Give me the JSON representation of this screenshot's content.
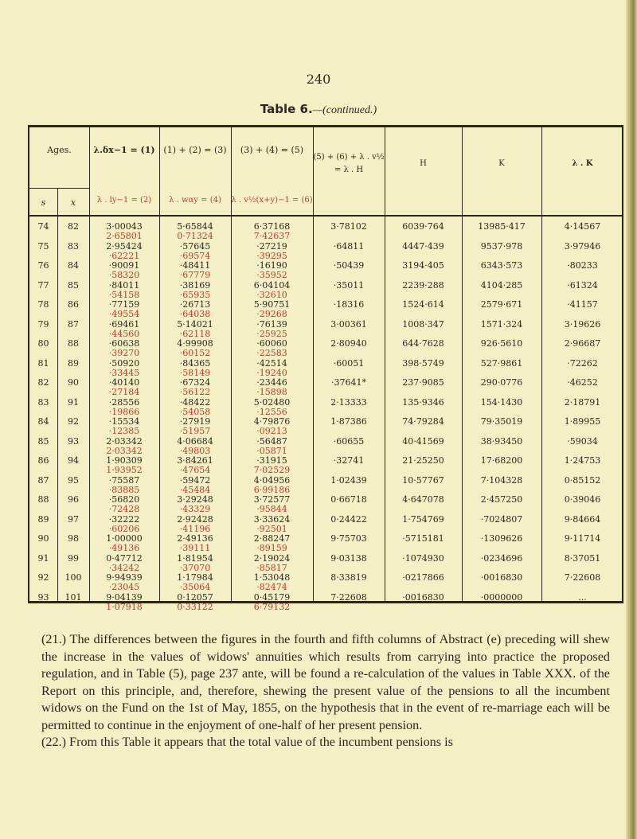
{
  "page_number": "240",
  "table": {
    "title_main": "Table 6.",
    "title_suffix": "—(continued.)",
    "headers": {
      "ages": "Ages.",
      "s": "s",
      "x": "x",
      "col1": "λ.δx−1 = (1)",
      "col2": "λ . ly−1 = (2)",
      "col3": "(1) + (2) = (3)",
      "col4": "λ . wαy  = (4)",
      "col5": "(3) + (4) = (5)",
      "col6": "λ . v½(x+y)−1 = (6)",
      "col56_line1": "(5) + (6) + λ . v½",
      "col56_line2": "= λ . H",
      "H": "H",
      "K": "K",
      "lK": "λ . K"
    },
    "rows": [
      {
        "s": "74",
        "x": "82",
        "c1": "3·00043",
        "c2": "2·65801",
        "c3": "5·65844",
        "c4": "0·71324",
        "c5": "6·37168",
        "c6": "7·42637",
        "c56": "3·78102",
        "H": "6039·764",
        "K": "13985·417",
        "lK": "4·14567"
      },
      {
        "s": "75",
        "x": "83",
        "c1": "2·95424",
        "c2": "·62221",
        "c3": "·57645",
        "c4": "·69574",
        "c5": "·27219",
        "c6": "·39295",
        "c56": "·64811",
        "H": "4447·439",
        "K": "9537·978",
        "lK": "3·97946"
      },
      {
        "s": "76",
        "x": "84",
        "c1": "·90091",
        "c2": "·58320",
        "c3": "·48411",
        "c4": "·67779",
        "c5": "·16190",
        "c6": "·35952",
        "c56": "·50439",
        "H": "3194·405",
        "K": "6343·573",
        "lK": "·80233"
      },
      {
        "s": "77",
        "x": "85",
        "c1": "·84011",
        "c2": "·54158",
        "c3": "·38169",
        "c4": "·65935",
        "c5": "6·04104",
        "c6": "·32610",
        "c56": "·35011",
        "H": "2239·288",
        "K": "4104·285",
        "lK": "·61324"
      },
      {
        "s": "78",
        "x": "86",
        "c1": "·77159",
        "c2": "·49554",
        "c3": "·26713",
        "c4": "·64038",
        "c5": "5·90751",
        "c6": "·29268",
        "c56": "·18316",
        "H": "1524·614",
        "K": "2579·671",
        "lK": "·41157"
      },
      {
        "s": "79",
        "x": "87",
        "c1": "·69461",
        "c2": "·44560",
        "c3": "5·14021",
        "c4": "·62118",
        "c5": "·76139",
        "c6": "·25925",
        "c56": "3·00361",
        "H": "1008·347",
        "K": "1571·324",
        "lK": "3·19626"
      },
      {
        "s": "80",
        "x": "88",
        "c1": "·60638",
        "c2": "·39270",
        "c3": "4·99908",
        "c4": "·60152",
        "c5": "·60060",
        "c6": "·22583",
        "c56": "2·80940",
        "H": "644·7628",
        "K": "926·5610",
        "lK": "2·96687"
      },
      {
        "s": "81",
        "x": "89",
        "c1": "·50920",
        "c2": "·33445",
        "c3": "·84365",
        "c4": "·58149",
        "c5": "·42514",
        "c6": "·19240",
        "c56": "·60051",
        "H": "398·5749",
        "K": "527·9861",
        "lK": "·72262"
      },
      {
        "s": "82",
        "x": "90",
        "c1": "·40140",
        "c2": "·27184",
        "c3": "·67324",
        "c4": "·56122",
        "c5": "·23446",
        "c6": "·15898",
        "c56": "·37641*",
        "H": "237·9085",
        "K": "290·0776",
        "lK": "·46252"
      },
      {
        "s": "83",
        "x": "91",
        "c1": "·28556",
        "c2": "·19866",
        "c3": "·48422",
        "c4": "·54058",
        "c5": "5·02480",
        "c6": "·12556",
        "c56": "2·13333",
        "H": "135·9346",
        "K": "154·1430",
        "lK": "2·18791"
      },
      {
        "s": "84",
        "x": "92",
        "c1": "·15534",
        "c2": "·12385",
        "c3": "·27919",
        "c4": "·51957",
        "c5": "4·79876",
        "c6": "·09213",
        "c56": "1·87386",
        "H": "74·79284",
        "K": "79·35019",
        "lK": "1·89955"
      },
      {
        "s": "85",
        "x": "93",
        "c1": "2·03342",
        "c2": "2·03342",
        "c3": "4·06684",
        "c4": "·49803",
        "c5": "·56487",
        "c6": "·05871",
        "c56": "·60655",
        "H": "40·41569",
        "K": "38·93450",
        "lK": "·59034"
      },
      {
        "s": "86",
        "x": "94",
        "c1": "1·90309",
        "c2": "1·93952",
        "c3": "3·84261",
        "c4": "·47654",
        "c5": "·31915",
        "c6": "7·02529",
        "c56": "·32741",
        "H": "21·25250",
        "K": "17·68200",
        "lK": "1·24753"
      },
      {
        "s": "87",
        "x": "95",
        "c1": "·75587",
        "c2": "·83885",
        "c3": "·59472",
        "c4": "·45484",
        "c5": "4·04956",
        "c6": "6·99186",
        "c56": "1·02439",
        "H": "10·57767",
        "K": "7·104328",
        "lK": "0·85152"
      },
      {
        "s": "88",
        "x": "96",
        "c1": "·56820",
        "c2": "·72428",
        "c3": "3·29248",
        "c4": "·43329",
        "c5": "3·72577",
        "c6": "·95844",
        "c56": "0·66718",
        "H": "4·647078",
        "K": "2·457250",
        "lK": "0·39046"
      },
      {
        "s": "89",
        "x": "97",
        "c1": "·32222",
        "c2": "·60206",
        "c3": "2·92428",
        "c4": "·41196",
        "c5": "3·33624",
        "c6": "·92501",
        "c56": "0·24422",
        "H": "1·754769",
        "K": "·7024807",
        "lK": "9·84664"
      },
      {
        "s": "90",
        "x": "98",
        "c1": "1·00000",
        "c2": "·49136",
        "c3": "2·49136",
        "c4": "·39111",
        "c5": "2·88247",
        "c6": "·89159",
        "c56": "9·75703",
        "H": "·5715181",
        "K": "·1309626",
        "lK": "9·11714"
      },
      {
        "s": "91",
        "x": "99",
        "c1": "0·47712",
        "c2": "·34242",
        "c3": "1·81954",
        "c4": "·37070",
        "c5": "2·19024",
        "c6": "·85817",
        "c56": "9·03138",
        "H": "·1074930",
        "K": "·0234696",
        "lK": "8·37051"
      },
      {
        "s": "92",
        "x": "100",
        "c1": "9·94939",
        "c2": "·23045",
        "c3": "1·17984",
        "c4": "·35064",
        "c5": "1·53048",
        "c6": "·82474",
        "c56": "8·33819",
        "H": "·0217866",
        "K": "·0016830",
        "lK": "7·22608"
      },
      {
        "s": "93",
        "x": "101",
        "c1": "9·04139",
        "c2": "1·07918",
        "c3": "0·12057",
        "c4": "0·33122",
        "c5": "0·45179",
        "c6": "6·79132",
        "c56": "7·22608",
        "H": "·0016830",
        "K": "·0000000",
        "lK": "..."
      }
    ]
  },
  "paragraphs": [
    "(21.) The differences between the figures in the fourth and fifth columns of Abstract (e) preceding will shew the increase in the values of widows' annuities which results from carrying into practice the proposed regulation, and in Table (5), page 237 ante, will be found a re-calculation of the values in Table XXX. of the Report on this principle, and, therefore, shewing the present value of the pensions to all the incumbent widows on the Fund on the 1st of May, 1855, on the hypothesis that in the event of re-marriage each will be permitted to continue in the enjoyment of one-half of her present pension.",
    "(22.) From this Table it appears that the total value of the incumbent pensions is"
  ],
  "colors": {
    "paper": "#f4efc4",
    "ink": "#2a2620",
    "red_ink": "#c0392b"
  }
}
